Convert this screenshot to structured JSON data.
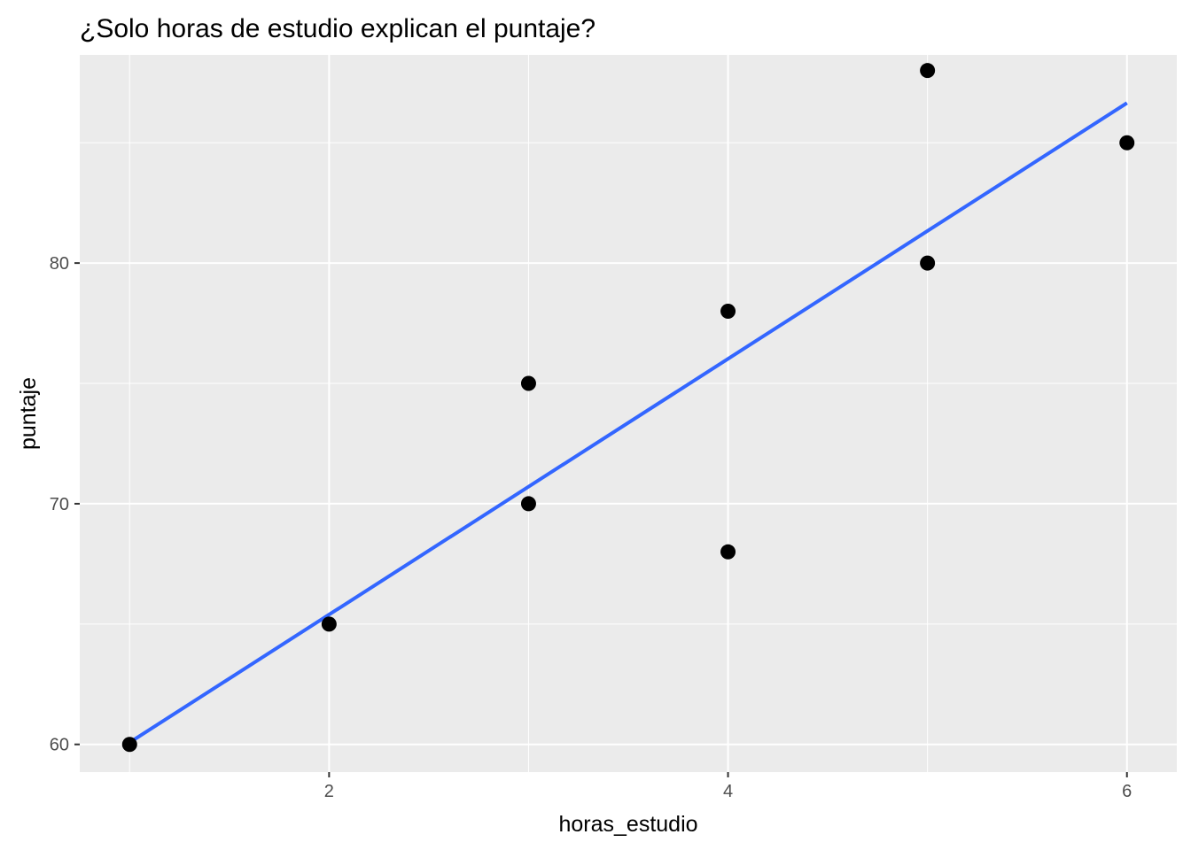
{
  "chart_data": {
    "type": "scatter",
    "title": "¿Solo horas de estudio explican el puntaje?",
    "xlabel": "horas_estudio",
    "ylabel": "puntaje",
    "xlim": [
      0.75,
      6.25
    ],
    "ylim": [
      58.85,
      88.65
    ],
    "x_ticks": [
      2,
      4,
      6
    ],
    "y_ticks": [
      60,
      70,
      80
    ],
    "x_minor": [
      1,
      3,
      5
    ],
    "y_minor": [
      65,
      75,
      85
    ],
    "grid": true,
    "legend": "none",
    "points": [
      {
        "x": 1,
        "y": 60
      },
      {
        "x": 2,
        "y": 65
      },
      {
        "x": 3,
        "y": 70
      },
      {
        "x": 3,
        "y": 75
      },
      {
        "x": 4,
        "y": 68
      },
      {
        "x": 4,
        "y": 78
      },
      {
        "x": 5,
        "y": 80
      },
      {
        "x": 5,
        "y": 88
      },
      {
        "x": 6,
        "y": 85
      }
    ],
    "fit_line": {
      "x": [
        1,
        6
      ],
      "y": [
        60.08,
        86.65
      ]
    },
    "colors": {
      "panel": "#ebebeb",
      "grid": "#ffffff",
      "point": "#000000",
      "line": "#3366ff"
    }
  }
}
